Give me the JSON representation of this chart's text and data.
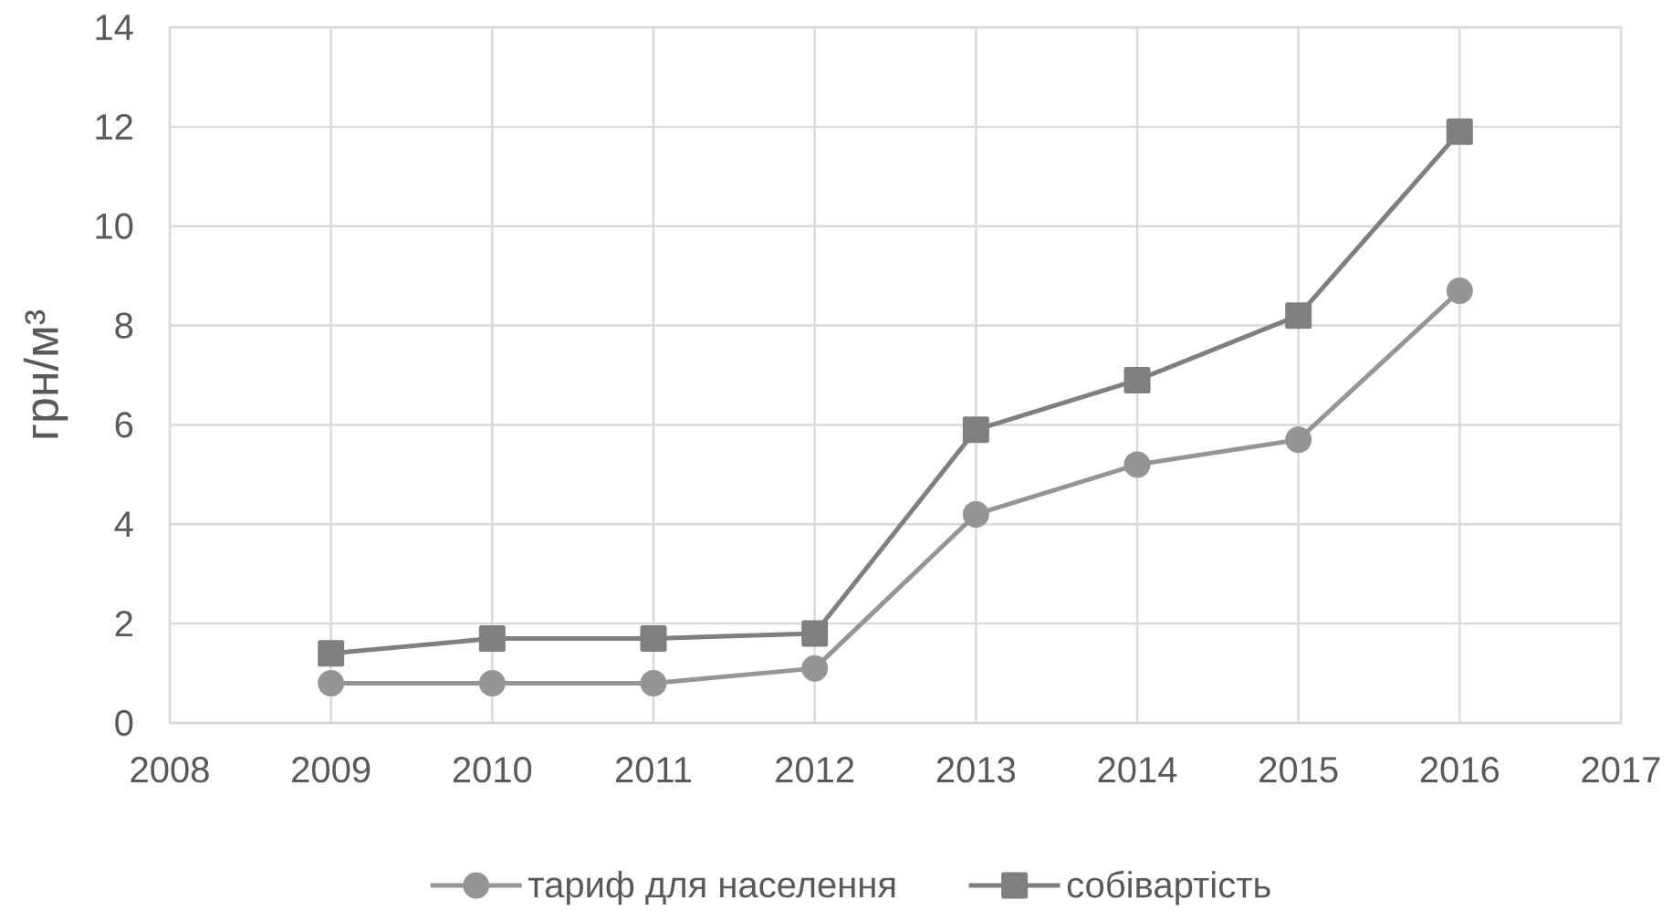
{
  "chart_data": {
    "type": "line",
    "ylabel": "грн/м³",
    "x": [
      2009,
      2010,
      2011,
      2012,
      2013,
      2014,
      2015,
      2016
    ],
    "xlim": [
      2008,
      2017
    ],
    "xticks": [
      2008,
      2009,
      2010,
      2011,
      2012,
      2013,
      2014,
      2015,
      2016,
      2017
    ],
    "ylim": [
      0,
      14
    ],
    "yticks": [
      0,
      2,
      4,
      6,
      8,
      10,
      12,
      14
    ],
    "grid": true,
    "legend": "bottom",
    "line_style": "solid",
    "series": [
      {
        "name": "тариф для населення",
        "color": "#959595",
        "marker": "circle",
        "values": [
          0.8,
          0.8,
          0.8,
          1.1,
          4.2,
          5.2,
          5.7,
          8.7
        ]
      },
      {
        "name": "собівартість",
        "color": "#7f7f7f",
        "marker": "square",
        "values": [
          1.4,
          1.7,
          1.7,
          1.8,
          5.9,
          6.9,
          8.2,
          11.9
        ]
      }
    ]
  }
}
